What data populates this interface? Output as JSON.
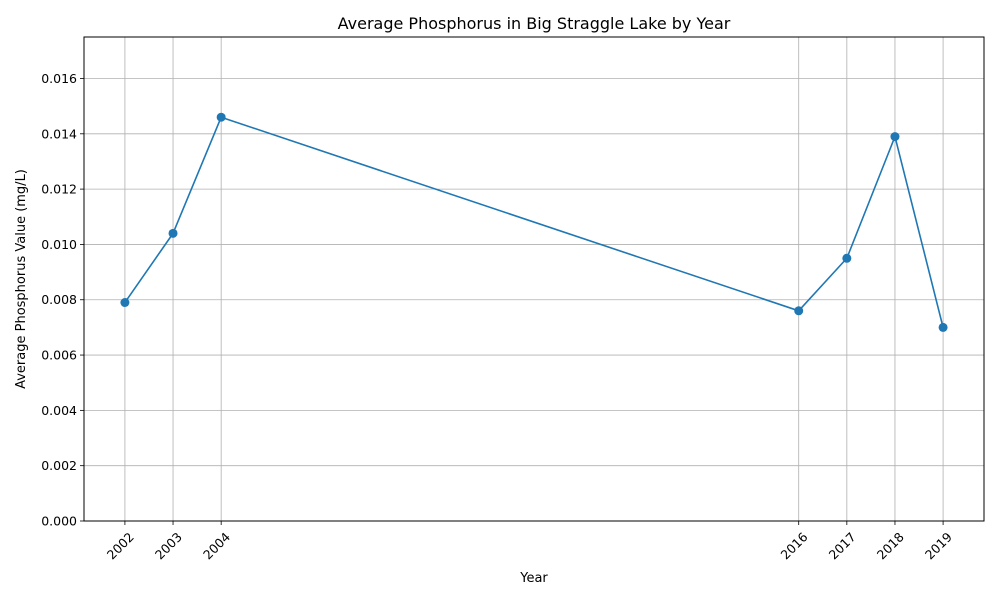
{
  "chart_data": {
    "type": "line",
    "title": "Average Phosphorus in Big Straggle Lake by Year",
    "xlabel": "Year",
    "ylabel": "Average Phosphorus Value (mg/L)",
    "x": [
      2002,
      2003,
      2004,
      2016,
      2017,
      2018,
      2019
    ],
    "x_tick_labels": [
      "2002",
      "2003",
      "2004",
      "2016",
      "2017",
      "2018",
      "2019"
    ],
    "series": [
      {
        "values": [
          0.0079,
          0.0104,
          0.0146,
          0.0076,
          0.0095,
          0.0139,
          0.007
        ],
        "color": "#1f77b4",
        "marker": "circle"
      }
    ],
    "xlim": [
      2001.15,
      2019.85
    ],
    "ylim": [
      0,
      0.0175
    ],
    "y_ticks": [
      0.0,
      0.002,
      0.004,
      0.006,
      0.008,
      0.01,
      0.012,
      0.014,
      0.016
    ],
    "y_tick_labels": [
      "0.000",
      "0.002",
      "0.004",
      "0.006",
      "0.008",
      "0.010",
      "0.012",
      "0.014",
      "0.016"
    ],
    "grid": true,
    "x_tick_rotation": 45
  }
}
